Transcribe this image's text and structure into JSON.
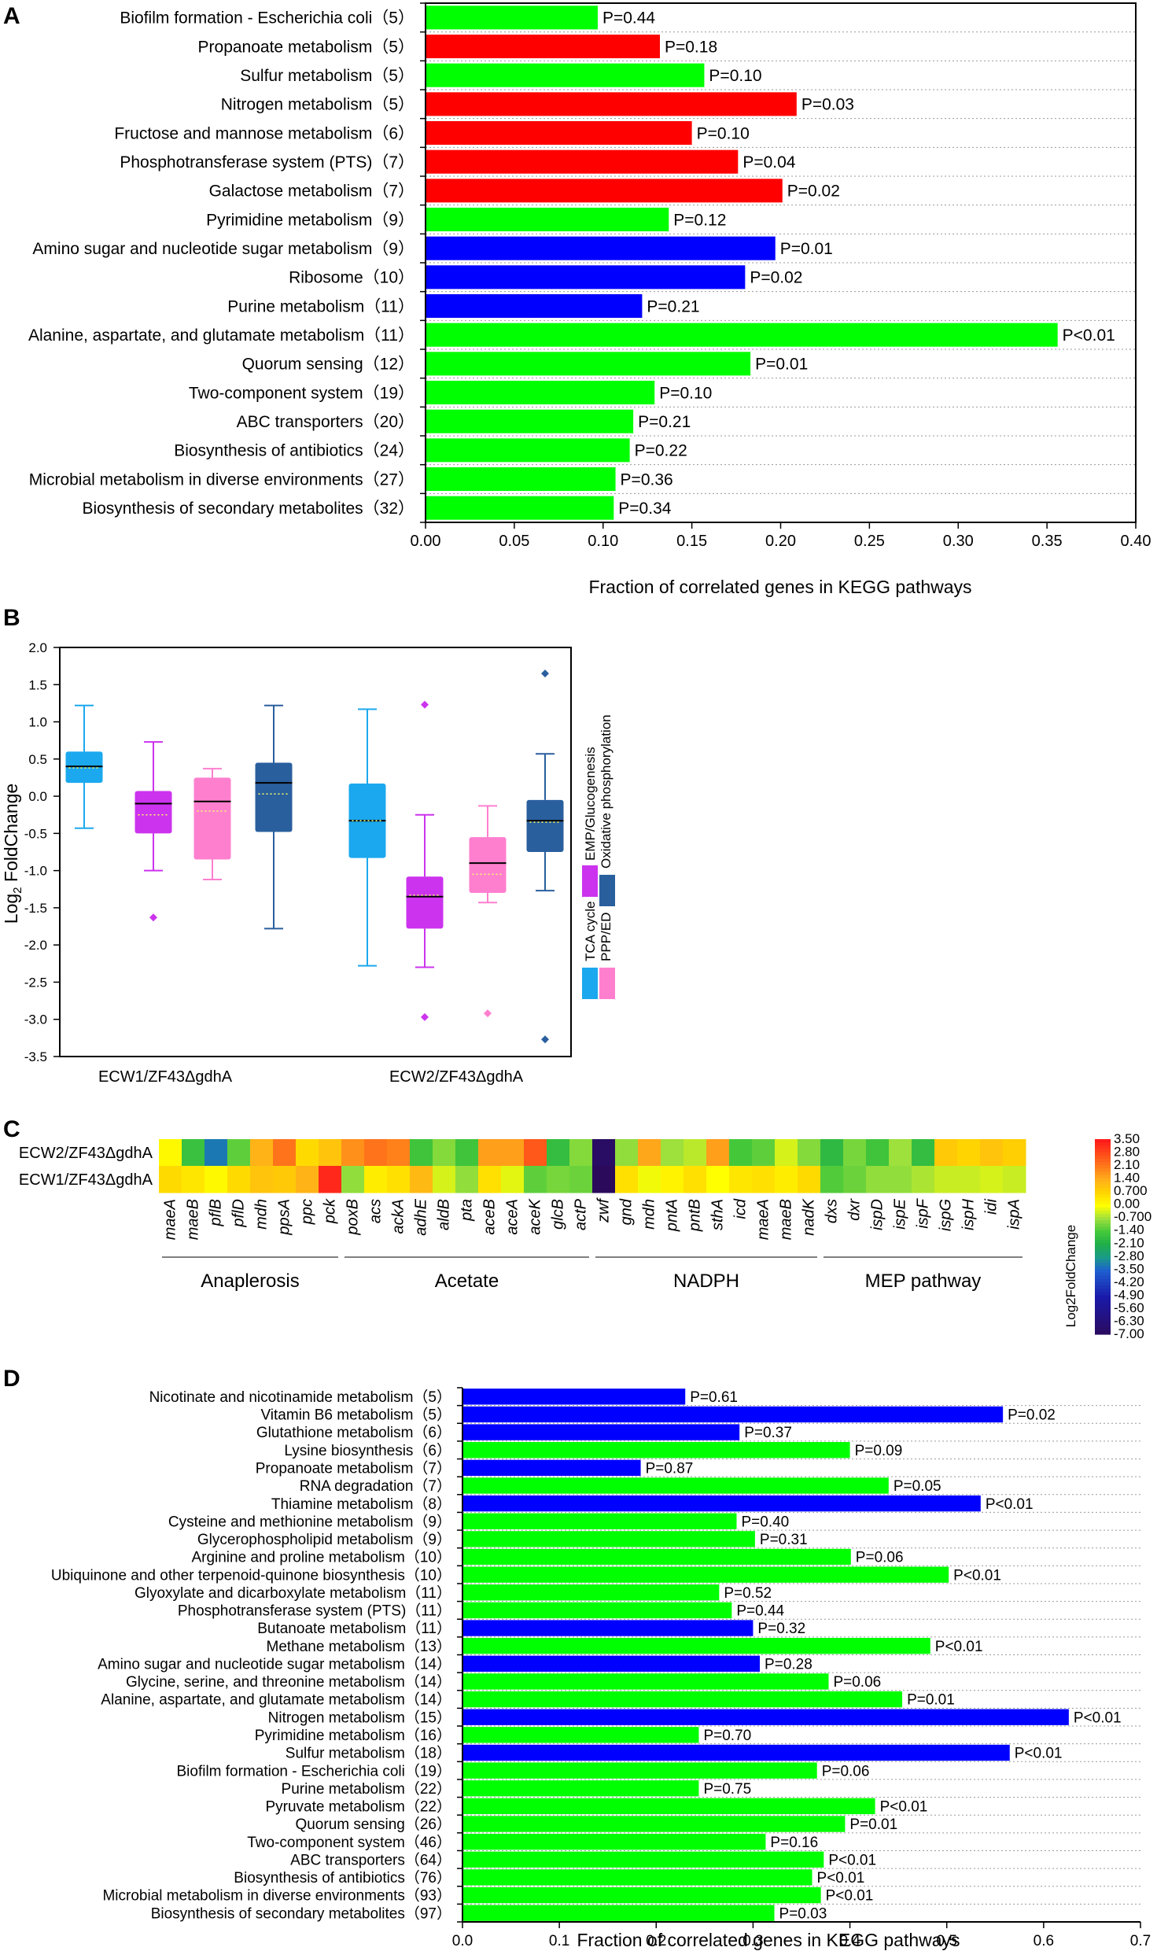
{
  "colors": {
    "green": "#00ff00",
    "red": "#ff0000",
    "blue": "#0000ff",
    "tca": "#1ba8ee",
    "emp": "#cc33ee",
    "ppp": "#ff7fcf",
    "oxphos": "#2a5f9e"
  },
  "chart_data": [
    {
      "panel": "A",
      "type": "bar",
      "orientation": "horizontal",
      "xlabel": "Fraction of correlated genes in KEGG pathways",
      "xlim": [
        0,
        0.4
      ],
      "xticks": [
        "0.00",
        "0.05",
        "0.10",
        "0.15",
        "0.20",
        "0.25",
        "0.30",
        "0.35",
        "0.40"
      ],
      "categories": [
        "Biofilm formation - Escherichia coli（5）",
        "Propanoate metabolism（5）",
        "Sulfur metabolism（5）",
        "Nitrogen metabolism（5）",
        "Fructose and mannose metabolism（6）",
        "Phosphotransferase system (PTS)（7）",
        "Galactose metabolism（7）",
        "Pyrimidine metabolism（9）",
        "Amino sugar and nucleotide sugar metabolism（9）",
        "Ribosome（10）",
        "Purine metabolism（11）",
        "Alanine, aspartate, and glutamate metabolism（11）",
        "Quorum sensing（12）",
        "Two-component system（19）",
        "ABC transporters（20）",
        "Biosynthesis of antibiotics（24）",
        "Microbial metabolism in diverse environments（27）",
        "Biosynthesis of secondary metabolites（32）"
      ],
      "values": [
        0.097,
        0.132,
        0.157,
        0.209,
        0.15,
        0.176,
        0.201,
        0.137,
        0.197,
        0.18,
        0.122,
        0.356,
        0.183,
        0.129,
        0.117,
        0.115,
        0.107,
        0.106
      ],
      "colors": [
        "green",
        "red",
        "green",
        "red",
        "red",
        "red",
        "red",
        "green",
        "blue",
        "blue",
        "blue",
        "green",
        "green",
        "green",
        "green",
        "green",
        "green",
        "green"
      ],
      "labels": [
        "P=0.44",
        "P=0.18",
        "P=0.10",
        "P=0.03",
        "P=0.10",
        "P=0.04",
        "P=0.02",
        "P=0.12",
        "P=0.01",
        "P=0.02",
        "P=0.21",
        "P<0.01",
        "P=0.01",
        "P=0.10",
        "P=0.21",
        "P=0.22",
        "P=0.36",
        "P=0.34"
      ]
    },
    {
      "panel": "B",
      "type": "box",
      "ylabel": "Log2 FoldChange",
      "ylim": [
        -3.5,
        2.0
      ],
      "yticks": [
        "2.0",
        "1.5",
        "1.0",
        "0.5",
        "0.0",
        "-0.5",
        "-1.0",
        "-1.5",
        "-2.0",
        "-2.5",
        "-3.0",
        "-3.5"
      ],
      "groups": [
        "ECW1/ZF43ΔgdhA",
        "ECW2/ZF43ΔgdhA"
      ],
      "legend": [
        "TCA cycle",
        "EMP/Glucogenesis",
        "PPP/ED",
        "Oxidative phosphorylation"
      ],
      "boxes": [
        {
          "group": 0,
          "series": "tca",
          "min": -0.43,
          "q1": 0.18,
          "median": 0.4,
          "mean": 0.38,
          "q3": 0.6,
          "max": 1.22,
          "outliers": []
        },
        {
          "group": 0,
          "series": "emp",
          "min": -1.0,
          "q1": -0.5,
          "median": -0.1,
          "mean": -0.25,
          "q3": 0.07,
          "max": 0.73,
          "outliers": [
            -1.63
          ]
        },
        {
          "group": 0,
          "series": "ppp",
          "min": -1.12,
          "q1": -0.85,
          "median": -0.07,
          "mean": -0.2,
          "q3": 0.25,
          "max": 0.37,
          "outliers": []
        },
        {
          "group": 0,
          "series": "oxphos",
          "min": -1.78,
          "q1": -0.48,
          "median": 0.18,
          "mean": 0.03,
          "q3": 0.45,
          "max": 1.22,
          "outliers": []
        },
        {
          "group": 1,
          "series": "tca",
          "min": -2.28,
          "q1": -0.83,
          "median": -0.33,
          "mean": -0.33,
          "q3": 0.17,
          "max": 1.17,
          "outliers": []
        },
        {
          "group": 1,
          "series": "emp",
          "min": -2.3,
          "q1": -1.78,
          "median": -1.35,
          "mean": -1.33,
          "q3": -1.08,
          "max": -0.25,
          "outliers": [
            1.23,
            -2.97
          ]
        },
        {
          "group": 1,
          "series": "ppp",
          "min": -1.43,
          "q1": -1.3,
          "median": -0.9,
          "mean": -1.05,
          "q3": -0.55,
          "max": -0.13,
          "outliers": [
            -2.92
          ]
        },
        {
          "group": 1,
          "series": "oxphos",
          "min": -1.27,
          "q1": -0.75,
          "median": -0.33,
          "mean": -0.35,
          "q3": -0.05,
          "max": 0.57,
          "outliers": [
            1.65,
            -3.27
          ]
        }
      ]
    },
    {
      "panel": "C",
      "type": "heatmap",
      "rows": [
        "ECW2/ZF43ΔgdhA",
        "ECW1/ZF43ΔgdhA"
      ],
      "columns": [
        "maeA",
        "maeB",
        "pflB",
        "pflD",
        "mdh",
        "ppsA",
        "ppc",
        "pck",
        "poxB",
        "acs",
        "ackA",
        "adhE",
        "aldB",
        "pta",
        "aceB",
        "aceA",
        "aceK",
        "glcB",
        "actP",
        "zwf",
        "gnd",
        "mdh",
        "pntA",
        "pntB",
        "sthA",
        "icd",
        "maeA",
        "maeB",
        "nadK",
        "dxs",
        "dxr",
        "ispD",
        "ispE",
        "ispF",
        "ispG",
        "ispH",
        "idi",
        "ispA"
      ],
      "values": [
        [
          0.1,
          -1.6,
          -3.2,
          -1.2,
          1.3,
          2.2,
          0.6,
          1.0,
          1.8,
          2.2,
          2.0,
          -1.5,
          -0.9,
          -1.5,
          1.6,
          1.6,
          2.6,
          -1.7,
          -0.9,
          -6.8,
          -0.8,
          1.5,
          -0.7,
          -0.5,
          1.6,
          -1.4,
          -1.2,
          -0.3,
          -0.9,
          -1.8,
          -1.0,
          -1.5,
          -0.7,
          -1.7,
          0.9,
          0.7,
          1.0,
          0.8
        ],
        [
          0.6,
          0.4,
          0.1,
          0.6,
          1.0,
          0.9,
          1.3,
          3.3,
          -0.8,
          0.3,
          0.5,
          1.2,
          -0.3,
          -0.8,
          0.5,
          -0.2,
          -1.2,
          -1.0,
          -1.1,
          -7.0,
          0.5,
          -0.1,
          0.2,
          0.5,
          0.0,
          0.4,
          0.5,
          0.3,
          0.6,
          -1.3,
          -1.1,
          -0.8,
          -0.8,
          -0.6,
          -0.4,
          -0.4,
          -0.3,
          -0.4
        ]
      ],
      "groups": [
        {
          "label": "Anaplerosis",
          "from": 0,
          "to": 7
        },
        {
          "label": "Acetate",
          "from": 8,
          "to": 18
        },
        {
          "label": "NADPH",
          "from": 19,
          "to": 28
        },
        {
          "label": "MEP pathway",
          "from": 29,
          "to": 37
        }
      ],
      "colorbar_title": "Log2FoldChange",
      "colorbar_ticks": [
        "3.50",
        "2.80",
        "2.10",
        "1.40",
        "0.700",
        "0.00",
        "-0.700",
        "-1.40",
        "-2.10",
        "-2.80",
        "-3.50",
        "-4.20",
        "-4.90",
        "-5.60",
        "-6.30",
        "-7.00"
      ]
    },
    {
      "panel": "D",
      "type": "bar",
      "orientation": "horizontal",
      "xlabel": "Fraction of correlated genes in KEGG pathways",
      "xlim": [
        0,
        0.7
      ],
      "xticks": [
        "0.0",
        "0.1",
        "0.2",
        "0.3",
        "0.4",
        "0.5",
        "0.6",
        "0.7"
      ],
      "categories": [
        "Nicotinate and nicotinamide metabolism（5）",
        "Vitamin B6 metabolism（5）",
        "Glutathione metabolism（6）",
        "Lysine biosynthesis（6）",
        "Propanoate metabolism（7）",
        "RNA degradation（7）",
        "Thiamine metabolism（8）",
        "Cysteine and methionine metabolism（9）",
        "Glycerophospholipid metabolism（9）",
        "Arginine and proline metabolism（10）",
        "Ubiquinone and other terpenoid-quinone biosynthesis（10）",
        "Glyoxylate and dicarboxylate metabolism（11）",
        "Phosphotransferase system (PTS)（11）",
        "Butanoate metabolism（11）",
        "Methane metabolism（13）",
        "Amino sugar and nucleotide sugar metabolism（14）",
        "Glycine, serine, and threonine metabolism（14）",
        "Alanine, aspartate, and glutamate metabolism（14）",
        "Nitrogen metabolism（15）",
        "Pyrimidine metabolism（16）",
        "Sulfur metabolism（18）",
        "Biofilm formation - Escherichia coli（19）",
        "Purine metabolism（22）",
        "Pyruvate metabolism（22）",
        "Quorum sensing（26）",
        "Two-component system（46）",
        "ABC transporters（64）",
        "Biosynthesis of antibiotics（76）",
        "Microbial metabolism in diverse environments（93）",
        "Biosynthesis of secondary metabolites（97）"
      ],
      "values": [
        0.23,
        0.558,
        0.286,
        0.4,
        0.184,
        0.44,
        0.535,
        0.283,
        0.302,
        0.401,
        0.502,
        0.265,
        0.278,
        0.3,
        0.483,
        0.307,
        0.378,
        0.454,
        0.626,
        0.244,
        0.565,
        0.366,
        0.244,
        0.426,
        0.395,
        0.313,
        0.373,
        0.361,
        0.37,
        0.322
      ],
      "colors": [
        "blue",
        "blue",
        "blue",
        "green",
        "blue",
        "green",
        "blue",
        "green",
        "green",
        "green",
        "green",
        "green",
        "green",
        "blue",
        "green",
        "blue",
        "green",
        "green",
        "blue",
        "green",
        "blue",
        "green",
        "green",
        "green",
        "green",
        "green",
        "green",
        "green",
        "green",
        "green"
      ],
      "labels": [
        "P=0.61",
        "P=0.02",
        "P=0.37",
        "P=0.09",
        "P=0.87",
        "P=0.05",
        "P<0.01",
        "P=0.40",
        "P=0.31",
        "P=0.06",
        "P<0.01",
        "P=0.52",
        "P=0.44",
        "P=0.32",
        "P<0.01",
        "P=0.28",
        "P=0.06",
        "P=0.01",
        "P<0.01",
        "P=0.70",
        "P<0.01",
        "P=0.06",
        "P=0.75",
        "P<0.01",
        "P=0.01",
        "P=0.16",
        "P<0.01",
        "P<0.01",
        "P<0.01",
        "P=0.03"
      ]
    }
  ]
}
